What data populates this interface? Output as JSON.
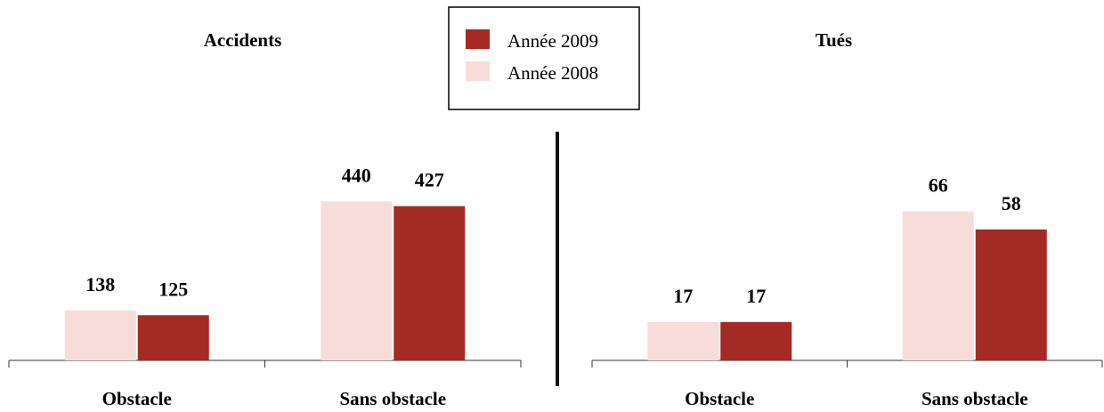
{
  "chart_data": [
    {
      "type": "bar",
      "title": "Accidents",
      "categories": [
        "Obstacle",
        "Sans obstacle"
      ],
      "series": [
        {
          "name": "Année 2008",
          "color": "#f8dcd9",
          "values": [
            138,
            440
          ]
        },
        {
          "name": "Année 2009",
          "color": "#a52a24",
          "values": [
            125,
            427
          ]
        }
      ],
      "ylim": [
        0,
        500
      ],
      "legend": "top"
    },
    {
      "type": "bar",
      "title": "Tués",
      "categories": [
        "Obstacle",
        "Sans obstacle"
      ],
      "series": [
        {
          "color": "#f8dcd9",
          "values": [
            17,
            66
          ]
        },
        {
          "color": "#a52a24",
          "values": [
            17,
            58
          ]
        }
      ],
      "ylim": [
        0,
        80
      ]
    }
  ]
}
